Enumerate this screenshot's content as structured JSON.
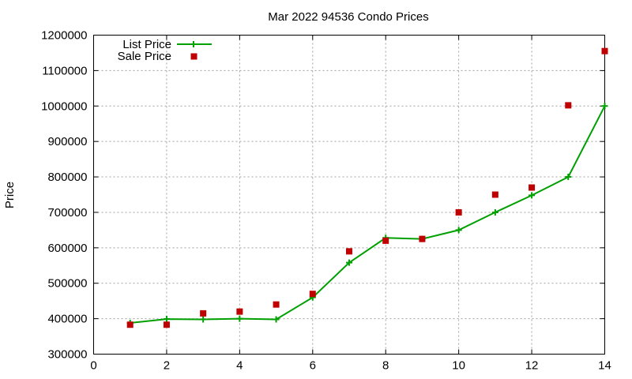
{
  "chart_data": {
    "type": "line",
    "title": "Mar 2022 94536 Condo Prices",
    "xlabel": "",
    "ylabel": "Price",
    "xlim": [
      0,
      14
    ],
    "ylim": [
      300000,
      1200000
    ],
    "x_ticks": [
      0,
      2,
      4,
      6,
      8,
      10,
      12,
      14
    ],
    "y_ticks": [
      300000,
      400000,
      500000,
      600000,
      700000,
      800000,
      900000,
      1000000,
      1100000,
      1200000
    ],
    "grid": true,
    "legend_position": "top-left",
    "series": [
      {
        "name": "List Price",
        "style": "line-with-plus-markers",
        "color": "#00a000",
        "points": [
          {
            "x": 1,
            "y": 388000
          },
          {
            "x": 2,
            "y": 399000
          },
          {
            "x": 3,
            "y": 398000
          },
          {
            "x": 4,
            "y": 400000
          },
          {
            "x": 5,
            "y": 398000
          },
          {
            "x": 6,
            "y": 460000
          },
          {
            "x": 7,
            "y": 558000
          },
          {
            "x": 8,
            "y": 628000
          },
          {
            "x": 9,
            "y": 625000
          },
          {
            "x": 10,
            "y": 650000
          },
          {
            "x": 11,
            "y": 700000
          },
          {
            "x": 12,
            "y": 748000
          },
          {
            "x": 13,
            "y": 800000
          },
          {
            "x": 14,
            "y": 1000000
          }
        ]
      },
      {
        "name": "Sale Price",
        "style": "square-markers",
        "color": "#c00000",
        "points": [
          {
            "x": 1,
            "y": 383000
          },
          {
            "x": 2,
            "y": 383000
          },
          {
            "x": 3,
            "y": 415000
          },
          {
            "x": 4,
            "y": 420000
          },
          {
            "x": 5,
            "y": 440000
          },
          {
            "x": 6,
            "y": 470000
          },
          {
            "x": 7,
            "y": 590000
          },
          {
            "x": 8,
            "y": 620000
          },
          {
            "x": 9,
            "y": 625000
          },
          {
            "x": 10,
            "y": 700000
          },
          {
            "x": 11,
            "y": 750000
          },
          {
            "x": 12,
            "y": 770000
          },
          {
            "x": 13,
            "y": 1002000
          },
          {
            "x": 14,
            "y": 1155000
          }
        ]
      }
    ]
  }
}
